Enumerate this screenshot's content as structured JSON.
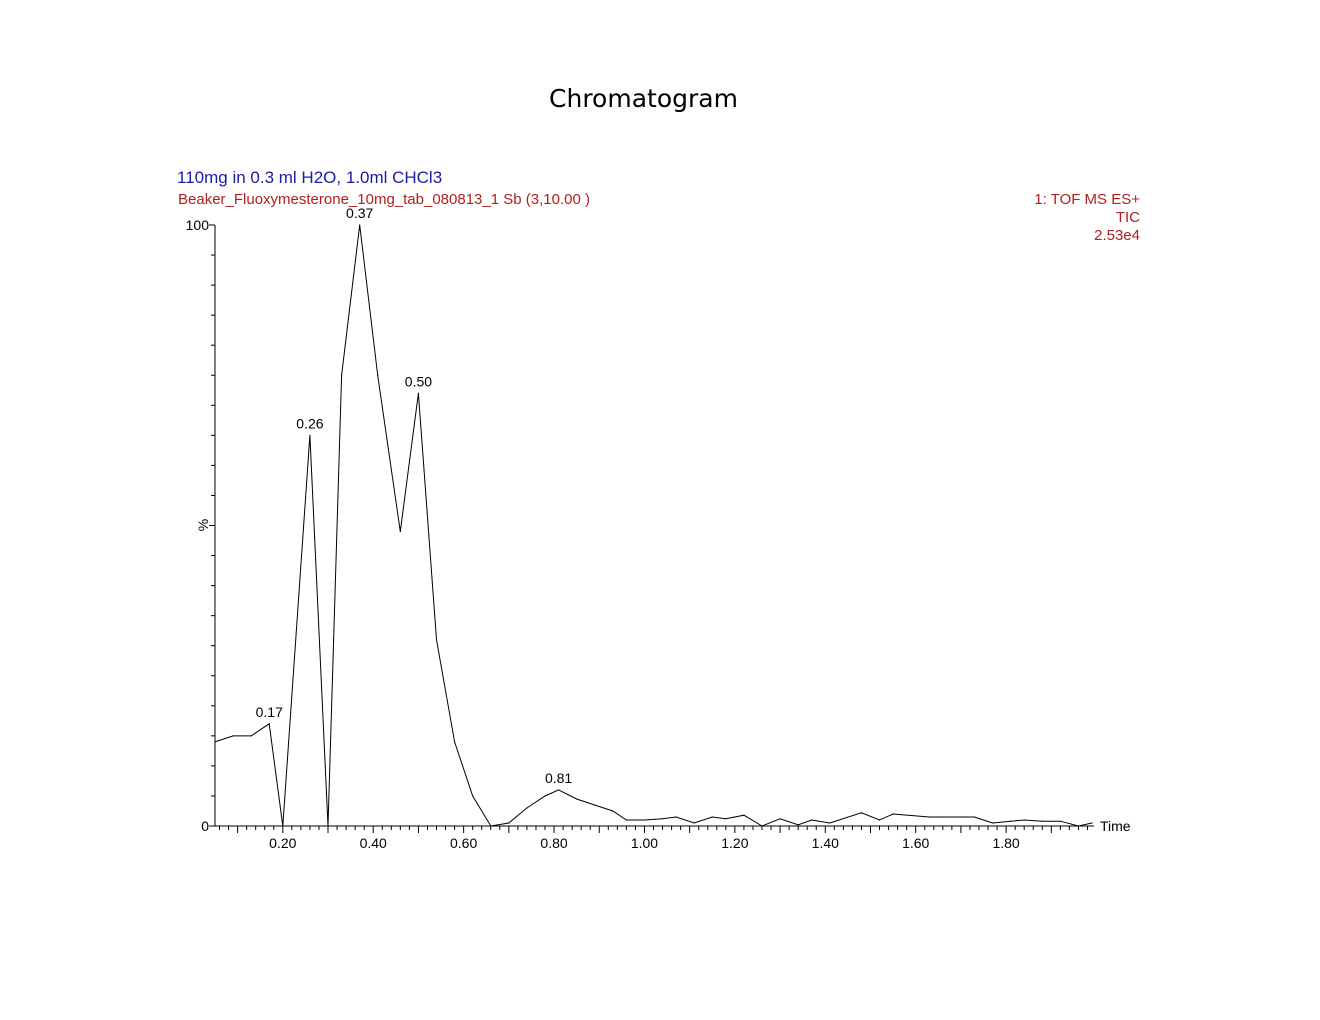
{
  "title": "Chromatogram",
  "header": {
    "sample_description": "110mg in 0.3 ml H2O, 1.0ml CHCl3",
    "run_name": "Beaker_Fluoxymesterone_10mg_tab_080813_1 Sb (3,10.00 )",
    "detector_function": "1: TOF MS ES+",
    "detector_trace": "TIC",
    "intensity_max": "2.53e4"
  },
  "colors": {
    "sample_description": "#1c1ca6",
    "run_info": "#b0201f",
    "trace": "#000000"
  },
  "chart_data": {
    "type": "line",
    "xlabel": "Time",
    "ylabel": "%",
    "xlim": [
      0.05,
      1.99
    ],
    "ylim": [
      0,
      100
    ],
    "x_ticks": [
      "0.20",
      "0.40",
      "0.60",
      "0.80",
      "1.00",
      "1.20",
      "1.40",
      "1.60",
      "1.80"
    ],
    "y_ticks": [
      "0",
      "100"
    ],
    "grid": false,
    "x": [
      0.05,
      0.09,
      0.13,
      0.17,
      0.2,
      0.26,
      0.3,
      0.33,
      0.37,
      0.41,
      0.46,
      0.5,
      0.54,
      0.58,
      0.62,
      0.66,
      0.7,
      0.74,
      0.78,
      0.81,
      0.85,
      0.89,
      0.93,
      0.96,
      1.0,
      1.04,
      1.07,
      1.11,
      1.15,
      1.18,
      1.22,
      1.26,
      1.3,
      1.34,
      1.37,
      1.41,
      1.48,
      1.52,
      1.55,
      1.63,
      1.66,
      1.7,
      1.73,
      1.77,
      1.81,
      1.84,
      1.88,
      1.92,
      1.96,
      1.99
    ],
    "y": [
      14,
      15,
      15,
      17,
      0,
      65,
      0,
      75,
      100,
      75,
      49,
      72,
      31,
      14,
      5,
      0,
      0.5,
      3,
      5,
      6,
      4.5,
      3.5,
      2.5,
      1,
      1,
      1.2,
      1.5,
      0.5,
      1.5,
      1.2,
      1.8,
      0,
      1.2,
      0.2,
      1,
      0.5,
      2.2,
      1,
      2,
      1.5,
      1.5,
      1.5,
      1.5,
      0.5,
      0.8,
      1,
      0.8,
      0.8,
      0,
      0.5
    ],
    "peak_labels": [
      {
        "x": 0.17,
        "y": 17,
        "label": "0.17"
      },
      {
        "x": 0.26,
        "y": 65,
        "label": "0.26"
      },
      {
        "x": 0.37,
        "y": 100,
        "label": "0.37"
      },
      {
        "x": 0.5,
        "y": 72,
        "label": "0.50"
      },
      {
        "x": 0.81,
        "y": 6,
        "label": "0.81"
      }
    ]
  }
}
